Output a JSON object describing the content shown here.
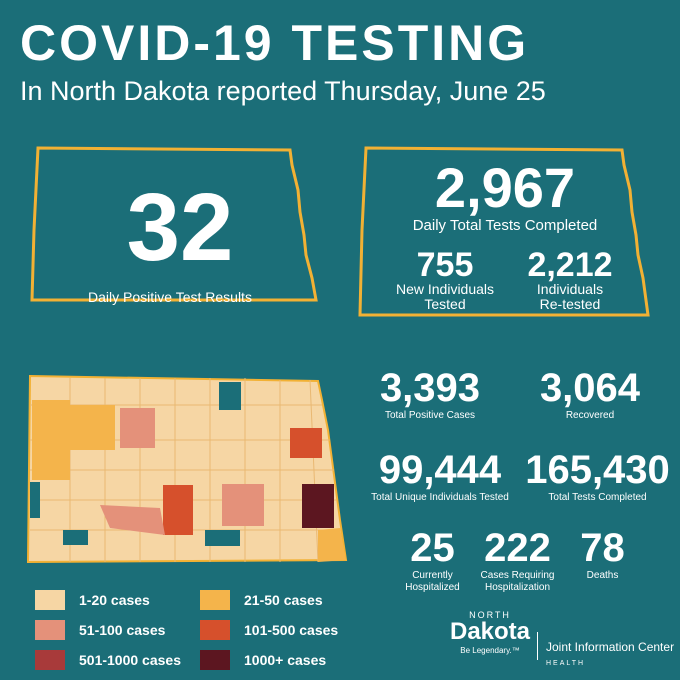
{
  "header": {
    "title": "COVID-19 TESTING",
    "subtitle": "In North Dakota reported Thursday, June 25"
  },
  "daily_positive": {
    "value": "32",
    "label": "Daily Positive Test Results"
  },
  "daily_tests": {
    "value": "2,967",
    "label": "Daily Total Tests Completed",
    "new_value": "755",
    "new_label_1": "New Individuals",
    "new_label_2": "Tested",
    "re_value": "2,212",
    "re_label_1": "Individuals",
    "re_label_2": "Re-tested"
  },
  "stats": {
    "total_positive": {
      "value": "3,393",
      "label": "Total Positive Cases"
    },
    "recovered": {
      "value": "3,064",
      "label": "Recovered"
    },
    "unique_tested": {
      "value": "99,444",
      "label": "Total Unique Individuals Tested"
    },
    "total_tests": {
      "value": "165,430",
      "label": "Total Tests Completed"
    },
    "hospitalized": {
      "value": "25",
      "label_1": "Currently",
      "label_2": "Hospitalized"
    },
    "cases_hosp": {
      "value": "222",
      "label_1": "Cases Requiring",
      "label_2": "Hospitalization"
    },
    "deaths": {
      "value": "78",
      "label": "Deaths"
    }
  },
  "legend": [
    {
      "label": "1-20 cases",
      "color": "#f6d6a4"
    },
    {
      "label": "21-50 cases",
      "color": "#f4b44b"
    },
    {
      "label": "51-100 cases",
      "color": "#e4917a"
    },
    {
      "label": "101-500 cases",
      "color": "#d6502c"
    },
    {
      "label": "501-1000 cases",
      "color": "#a83a3a"
    },
    {
      "label": "1000+ cases",
      "color": "#5c1620"
    }
  ],
  "logo": {
    "top": "NORTH",
    "name": "Dakota",
    "tagline": "Be Legendary.™",
    "jic": "Joint Information Center",
    "health": "HEALTH"
  },
  "colors": {
    "background": "#1b6e78",
    "outline": "#f2b134"
  }
}
